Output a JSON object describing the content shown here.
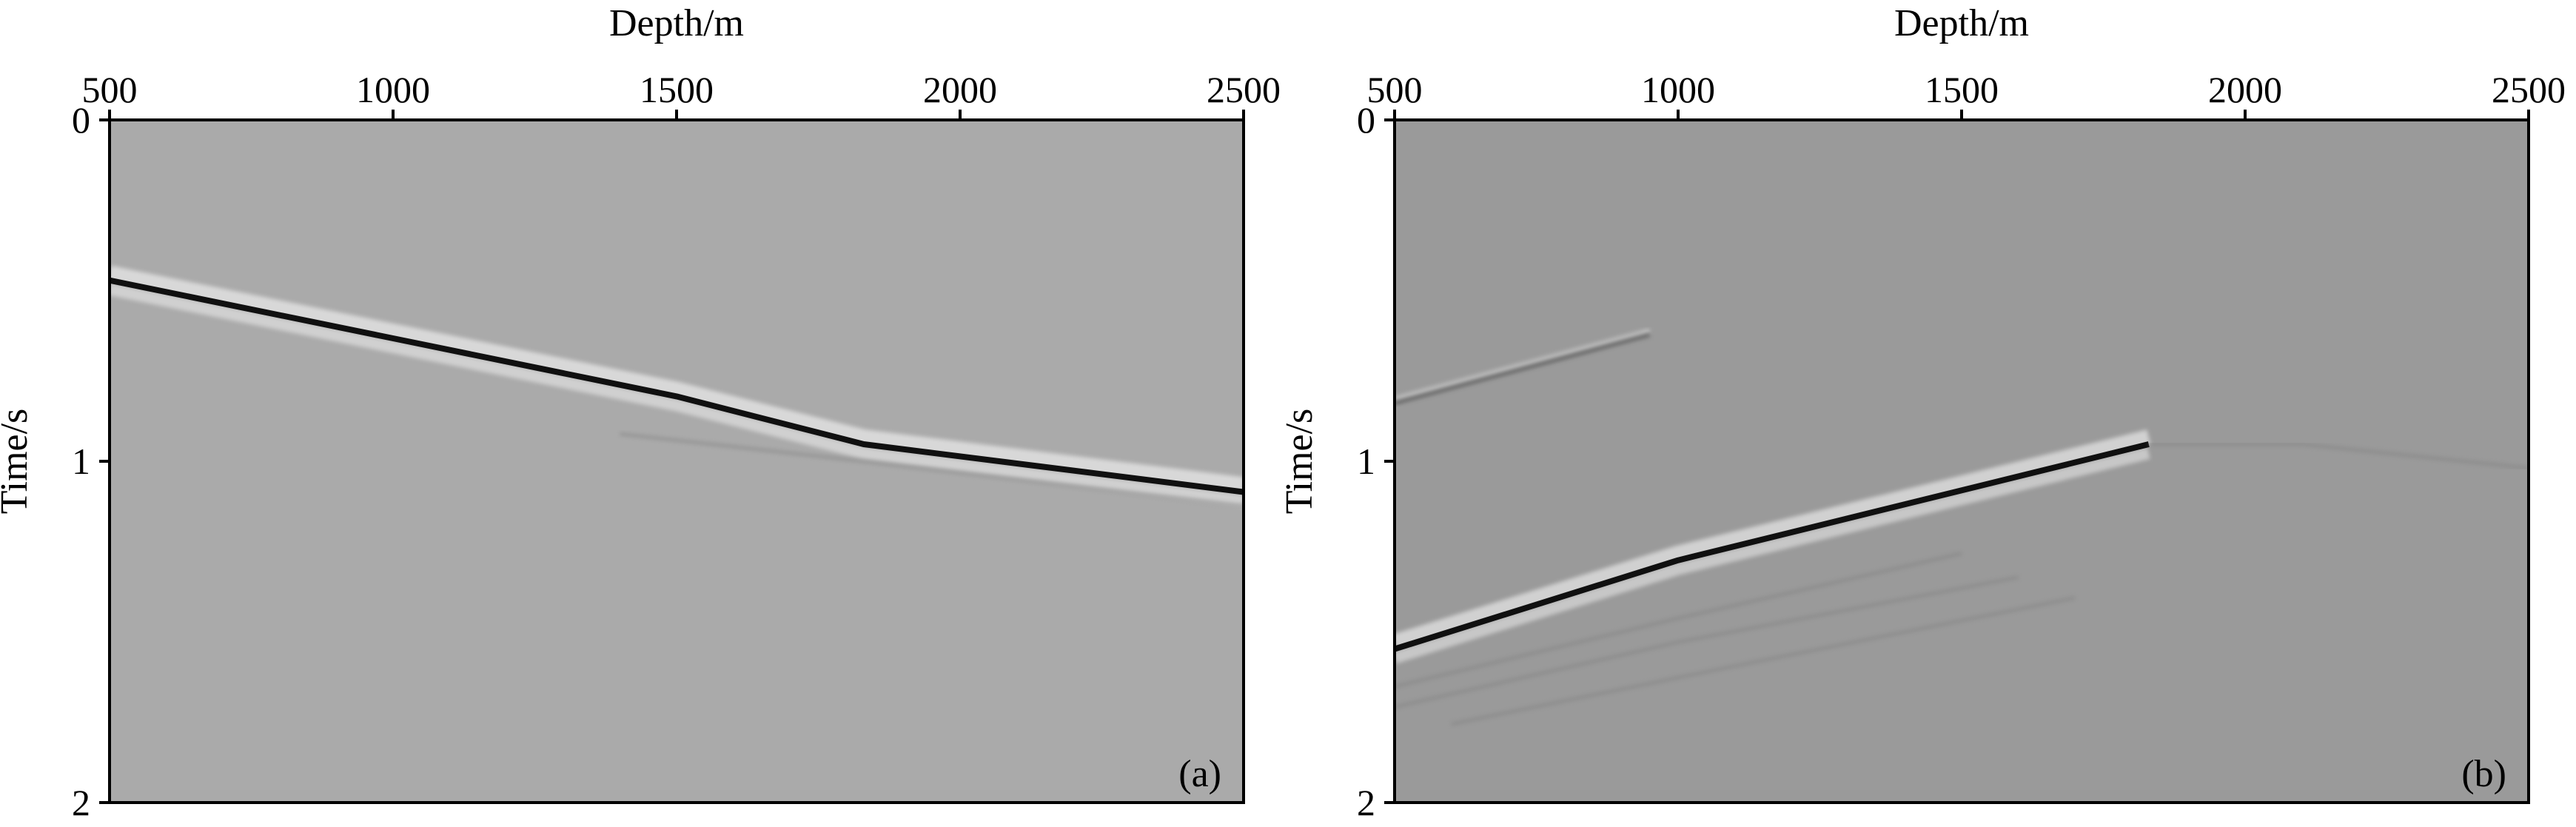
{
  "chart_data": [
    {
      "type": "line",
      "panel_label": "(a)",
      "xlabel": "Depth/m",
      "ylabel": "Time/s",
      "xlim": [
        500,
        2500
      ],
      "ylim": [
        0,
        2
      ],
      "y_inverted": true,
      "x_axis_position": "top",
      "x_ticks": [
        "500",
        "1000",
        "1500",
        "2000",
        "2500"
      ],
      "y_ticks": [
        "0",
        "1",
        "2"
      ],
      "background_gray": "#aaaaaa",
      "series": [
        {
          "x": [
            500,
            1000,
            1500,
            1830,
            2500
          ],
          "y": [
            0.47,
            0.64,
            0.81,
            0.95,
            1.09
          ],
          "style": "primary"
        },
        {
          "x": [
            1400,
            1830,
            2500
          ],
          "y": [
            0.92,
            1.0,
            1.13
          ],
          "style": "faint"
        }
      ]
    },
    {
      "type": "line",
      "panel_label": "(b)",
      "xlabel": "Depth/m",
      "ylabel": "Time/s",
      "xlim": [
        500,
        2500
      ],
      "ylim": [
        0,
        2
      ],
      "y_inverted": true,
      "x_axis_position": "top",
      "x_ticks": [
        "500",
        "1000",
        "1500",
        "2000",
        "2500"
      ],
      "y_ticks": [
        "0",
        "1",
        "2"
      ],
      "background_gray": "#9a9a9a",
      "series": [
        {
          "x": [
            500,
            1000,
            1830
          ],
          "y": [
            1.55,
            1.29,
            0.95
          ],
          "style": "primary"
        },
        {
          "x": [
            500,
            950
          ],
          "y": [
            0.83,
            0.63
          ],
          "style": "secondary"
        },
        {
          "x": [
            1830,
            2100,
            2500
          ],
          "y": [
            0.95,
            0.95,
            1.02
          ],
          "style": "faint"
        },
        {
          "x": [
            500,
            1000,
            1600
          ],
          "y": [
            1.72,
            1.53,
            1.34
          ],
          "style": "faint"
        },
        {
          "x": [
            500,
            1000,
            1500
          ],
          "y": [
            1.66,
            1.46,
            1.27
          ],
          "style": "faint"
        },
        {
          "x": [
            600,
            1100,
            1700
          ],
          "y": [
            1.77,
            1.6,
            1.4
          ],
          "style": "faint"
        }
      ]
    }
  ]
}
